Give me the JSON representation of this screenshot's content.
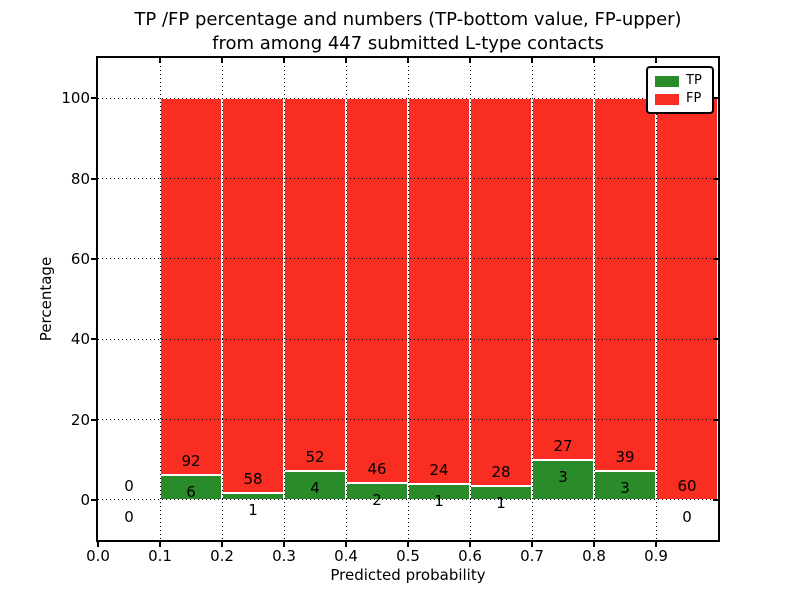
{
  "figure": {
    "title_line1": "TP /FP percentage and numbers (TP-bottom value, FP-upper)",
    "title_line2": "from among 447 submitted L-type contacts",
    "xlabel": "Predicted probability",
    "ylabel": "Percentage"
  },
  "legend": {
    "items": [
      {
        "label": "TP",
        "color": "#2a8b2a"
      },
      {
        "label": "FP",
        "color": "#f92d22"
      }
    ]
  },
  "colors": {
    "tp": "#2a8b2a",
    "fp": "#f92d22",
    "bar_edge": "#ffffff",
    "grid": "#000000",
    "background": "#ffffff"
  },
  "chart_data": {
    "type": "bar",
    "stacked": true,
    "normalized_to_percent": 100,
    "title": "TP /FP percentage and numbers (TP-bottom value, FP-upper) from among 447 submitted L-type contacts",
    "xlabel": "Predicted probability",
    "ylabel": "Percentage",
    "total_submitted_contacts": 447,
    "xlim": [
      0.0,
      1.0
    ],
    "ylim": [
      -10,
      110
    ],
    "grid": true,
    "legend_position": "upper right",
    "bin_edges": [
      0.0,
      0.1,
      0.2,
      0.3,
      0.4,
      0.5,
      0.6,
      0.7,
      0.8,
      0.9,
      1.0
    ],
    "x_tick_values": [
      0.0,
      0.1,
      0.2,
      0.3,
      0.4,
      0.5,
      0.6,
      0.7,
      0.8,
      0.9
    ],
    "x_tick_labels": [
      "0.0",
      "0.1",
      "0.2",
      "0.3",
      "0.4",
      "0.5",
      "0.6",
      "0.7",
      "0.8",
      "0.9"
    ],
    "y_tick_values": [
      0,
      20,
      40,
      60,
      80,
      100
    ],
    "y_tick_labels": [
      "0",
      "20",
      "40",
      "60",
      "80",
      "100"
    ],
    "series": [
      {
        "name": "TP",
        "color": "#2a8b2a",
        "counts": [
          0,
          6,
          1,
          4,
          2,
          1,
          1,
          3,
          3,
          0
        ]
      },
      {
        "name": "FP",
        "color": "#f92d22",
        "counts": [
          0,
          92,
          58,
          52,
          46,
          24,
          28,
          27,
          39,
          60
        ]
      }
    ],
    "tp_percent_of_bin": [
      0.0,
      6.1,
      1.7,
      7.1,
      4.2,
      4.0,
      3.4,
      10.0,
      7.1,
      0.0
    ],
    "fp_percent_of_bin": [
      0.0,
      93.9,
      98.3,
      92.9,
      95.8,
      96.0,
      96.6,
      90.0,
      92.9,
      100.0
    ],
    "bar_count_labels": {
      "tp_below_boundary": true,
      "fp_above_boundary": true
    }
  }
}
